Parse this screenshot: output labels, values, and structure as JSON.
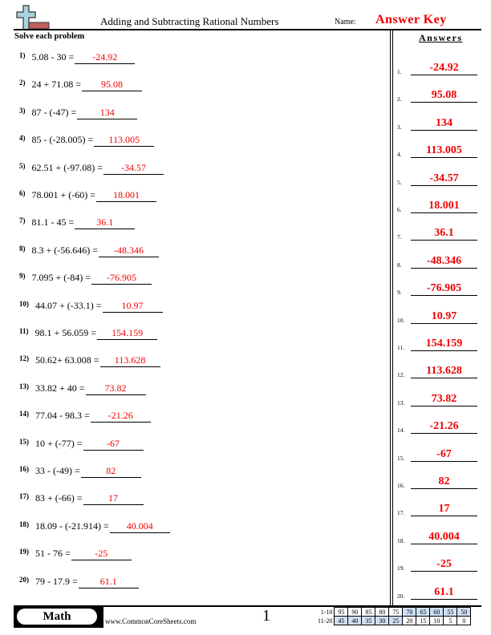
{
  "header": {
    "title": "Adding and Subtracting Rational Numbers",
    "name_label": "Name:",
    "name_value": "Answer Key"
  },
  "instructions": "Solve each problem",
  "answers_heading": "Answers",
  "problems": [
    {
      "num": "1)",
      "expr": "5.08 - 30 =",
      "answer": "-24.92"
    },
    {
      "num": "2)",
      "expr": "24 + 71.08 =",
      "answer": "95.08"
    },
    {
      "num": "3)",
      "expr": "87 - (-47) =",
      "answer": "134"
    },
    {
      "num": "4)",
      "expr": "85 - (-28.005) =",
      "answer": "113.005"
    },
    {
      "num": "5)",
      "expr": "62.51 + (-97.08) =",
      "answer": "-34.57"
    },
    {
      "num": "6)",
      "expr": "78.001 + (-60) =",
      "answer": "18.001"
    },
    {
      "num": "7)",
      "expr": "81.1 - 45 =",
      "answer": "36.1"
    },
    {
      "num": "8)",
      "expr": "8.3 + (-56.646) =",
      "answer": "-48.346"
    },
    {
      "num": "9)",
      "expr": "7.095 + (-84) =",
      "answer": "-76.905"
    },
    {
      "num": "10)",
      "expr": "44.07 + (-33.1) =",
      "answer": "10.97"
    },
    {
      "num": "11)",
      "expr": "98.1 + 56.059 =",
      "answer": "154.159"
    },
    {
      "num": "12)",
      "expr": "50.62+ 63.008 =",
      "answer": "113.628"
    },
    {
      "num": "13)",
      "expr": "33.82 + 40 =",
      "answer": "73.82"
    },
    {
      "num": "14)",
      "expr": "77.04 - 98.3 =",
      "answer": "-21.26"
    },
    {
      "num": "15)",
      "expr": "10 + (-77) =",
      "answer": "-67"
    },
    {
      "num": "16)",
      "expr": "33 - (-49) =",
      "answer": "82"
    },
    {
      "num": "17)",
      "expr": "83 + (-66) =",
      "answer": "17"
    },
    {
      "num": "18)",
      "expr": "18.09 - (-21.914) =",
      "answer": "40.004"
    },
    {
      "num": "19)",
      "expr": "51 - 76 =",
      "answer": "-25"
    },
    {
      "num": "20)",
      "expr": "79 - 17.9 =",
      "answer": "61.1"
    }
  ],
  "answer_numbers": [
    "1.",
    "2.",
    "3.",
    "4.",
    "5.",
    "6.",
    "7.",
    "8.",
    "9.",
    "10.",
    "11.",
    "12.",
    "13.",
    "14.",
    "15.",
    "16.",
    "17.",
    "18.",
    "19.",
    "20."
  ],
  "footer": {
    "subject": "Math",
    "website": "www.CommonCoreSheets.com",
    "page": "1",
    "score_rows": [
      {
        "label": "1-10",
        "values": [
          "95",
          "90",
          "85",
          "80",
          "75",
          "70",
          "65",
          "60",
          "55",
          "50"
        ]
      },
      {
        "label": "11-20",
        "values": [
          "45",
          "40",
          "35",
          "30",
          "25",
          "20",
          "15",
          "10",
          "5",
          "0"
        ]
      }
    ]
  },
  "colors": {
    "answer": "#ee0000",
    "score_highlight": "#cfe0f5",
    "logo_plus": "#a8d4dc",
    "logo_bar": "#c06060"
  }
}
